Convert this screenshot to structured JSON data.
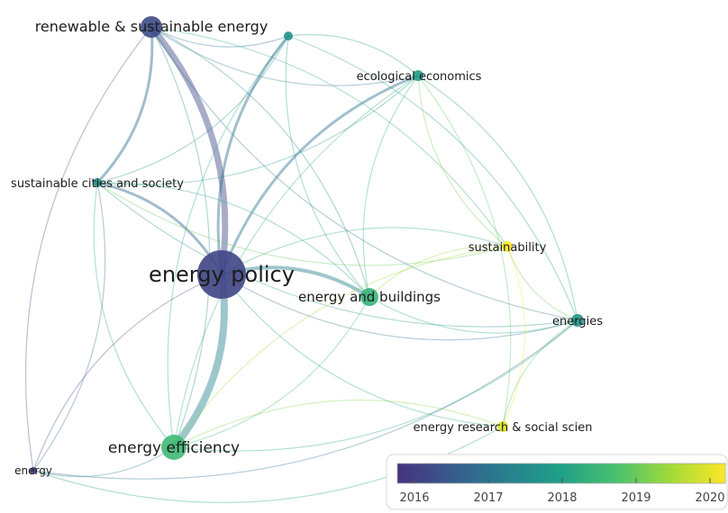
{
  "nodes": [
    {
      "id": "renewable",
      "label": "renewable & sustainable energy",
      "year": 2016.4
    },
    {
      "id": "top",
      "label": "",
      "year": 2017.7
    },
    {
      "id": "ecological",
      "label": "ecological economics",
      "year": 2017.9
    },
    {
      "id": "cities",
      "label": "sustainable cities and society",
      "year": 2017.6
    },
    {
      "id": "sustainability",
      "label": "sustainability",
      "year": 2020.1
    },
    {
      "id": "policy",
      "label": "energy policy",
      "year": 2016.3
    },
    {
      "id": "buildings",
      "label": "energy and buildings",
      "year": 2018.4
    },
    {
      "id": "energies",
      "label": "energies",
      "year": 2017.8
    },
    {
      "id": "research",
      "label": "energy research & social scien",
      "year": 2019.8
    },
    {
      "id": "efficiency",
      "label": "energy efficiency",
      "year": 2018.5
    },
    {
      "id": "energy",
      "label": "energy",
      "year": 2016.2
    }
  ],
  "links": [
    [
      "renewable",
      "policy"
    ],
    [
      "renewable",
      "top"
    ],
    [
      "renewable",
      "cities"
    ],
    [
      "renewable",
      "ecological"
    ],
    [
      "renewable",
      "buildings"
    ],
    [
      "renewable",
      "energies"
    ],
    [
      "renewable",
      "efficiency"
    ],
    [
      "renewable",
      "energy"
    ],
    [
      "renewable",
      "sustainability"
    ],
    [
      "top",
      "policy"
    ],
    [
      "top",
      "ecological"
    ],
    [
      "top",
      "buildings"
    ],
    [
      "top",
      "energies"
    ],
    [
      "top",
      "efficiency"
    ],
    [
      "top",
      "cities"
    ],
    [
      "ecological",
      "policy"
    ],
    [
      "ecological",
      "cities"
    ],
    [
      "ecological",
      "sustainability"
    ],
    [
      "ecological",
      "energies"
    ],
    [
      "ecological",
      "buildings"
    ],
    [
      "ecological",
      "research"
    ],
    [
      "ecological",
      "efficiency"
    ],
    [
      "cities",
      "policy"
    ],
    [
      "cities",
      "efficiency"
    ],
    [
      "cities",
      "buildings"
    ],
    [
      "cities",
      "energies"
    ],
    [
      "cities",
      "energy"
    ],
    [
      "cities",
      "sustainability"
    ],
    [
      "policy",
      "buildings"
    ],
    [
      "policy",
      "energies"
    ],
    [
      "policy",
      "efficiency"
    ],
    [
      "policy",
      "research"
    ],
    [
      "policy",
      "sustainability"
    ],
    [
      "policy",
      "energy"
    ],
    [
      "buildings",
      "efficiency"
    ],
    [
      "buildings",
      "energies"
    ],
    [
      "buildings",
      "sustainability"
    ],
    [
      "sustainability",
      "energies"
    ],
    [
      "sustainability",
      "research"
    ],
    [
      "sustainability",
      "efficiency"
    ],
    [
      "energies",
      "efficiency"
    ],
    [
      "energies",
      "research"
    ],
    [
      "energies",
      "energy"
    ],
    [
      "research",
      "efficiency"
    ],
    [
      "efficiency",
      "energy"
    ],
    [
      "energy",
      "research"
    ]
  ],
  "legend": {
    "ticks": [
      "2016",
      "2017",
      "2018",
      "2019",
      "2020"
    ],
    "colors": [
      "#46327e",
      "#365c8d",
      "#277f8e",
      "#1fa187",
      "#4ac16d",
      "#a0da39",
      "#fde725"
    ]
  }
}
